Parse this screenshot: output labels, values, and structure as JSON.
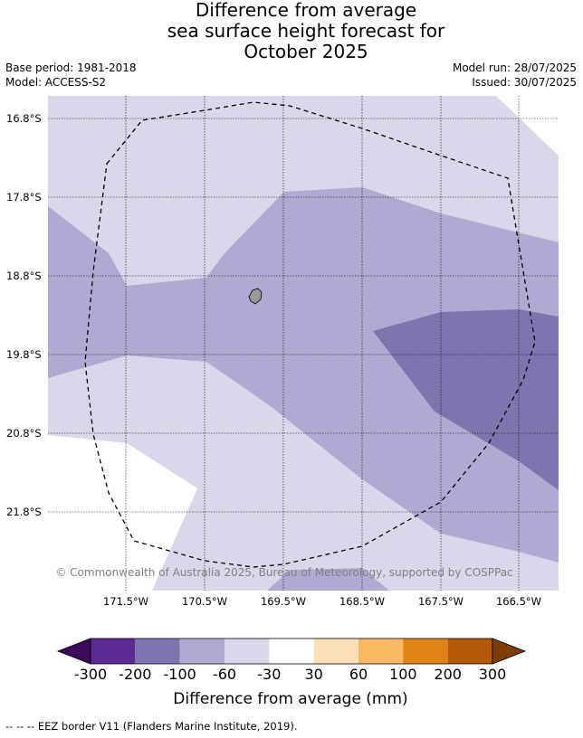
{
  "title": {
    "line1": "Difference from average",
    "line2": "sea surface height forecast for",
    "line3": "October 2025"
  },
  "meta": {
    "base_period": "Base period: 1981-2018",
    "model": "Model: ACCESS-S2",
    "model_run": "Model run: 28/07/2025",
    "issued": "Issued: 30/07/2025"
  },
  "map": {
    "lat_labels": [
      "16.8°S",
      "17.8°S",
      "18.8°S",
      "19.8°S",
      "20.8°S",
      "21.8°S"
    ],
    "lon_labels": [
      "171.5°W",
      "170.5°W",
      "169.5°W",
      "168.5°W",
      "167.5°W",
      "166.5°W"
    ],
    "copyright": "© Commonwealth of Australia 2025, Bureau of Meteorology, supported by COSPPac",
    "colors": {
      "band_-60_-30": "#d8d8ea",
      "band_-100_-60": "#b0aad2",
      "band_-200_-100": "#8074ae",
      "land": "#999999"
    }
  },
  "colorbar": {
    "labels": [
      "-300",
      "-200",
      "-100",
      "-60",
      "-30",
      "30",
      "60",
      "100",
      "200",
      "300"
    ],
    "title": "Difference from average (mm)",
    "colors": [
      "#3f0a5e",
      "#5a2a8e",
      "#8074ae",
      "#b0aad2",
      "#d8d8ea",
      "#ffffff",
      "#fee0b6",
      "#fdb863",
      "#e08214",
      "#b35806",
      "#7f3b08"
    ]
  },
  "footnote": "--  --  -- EEZ border V11 (Flanders Marine Institute, 2019)."
}
